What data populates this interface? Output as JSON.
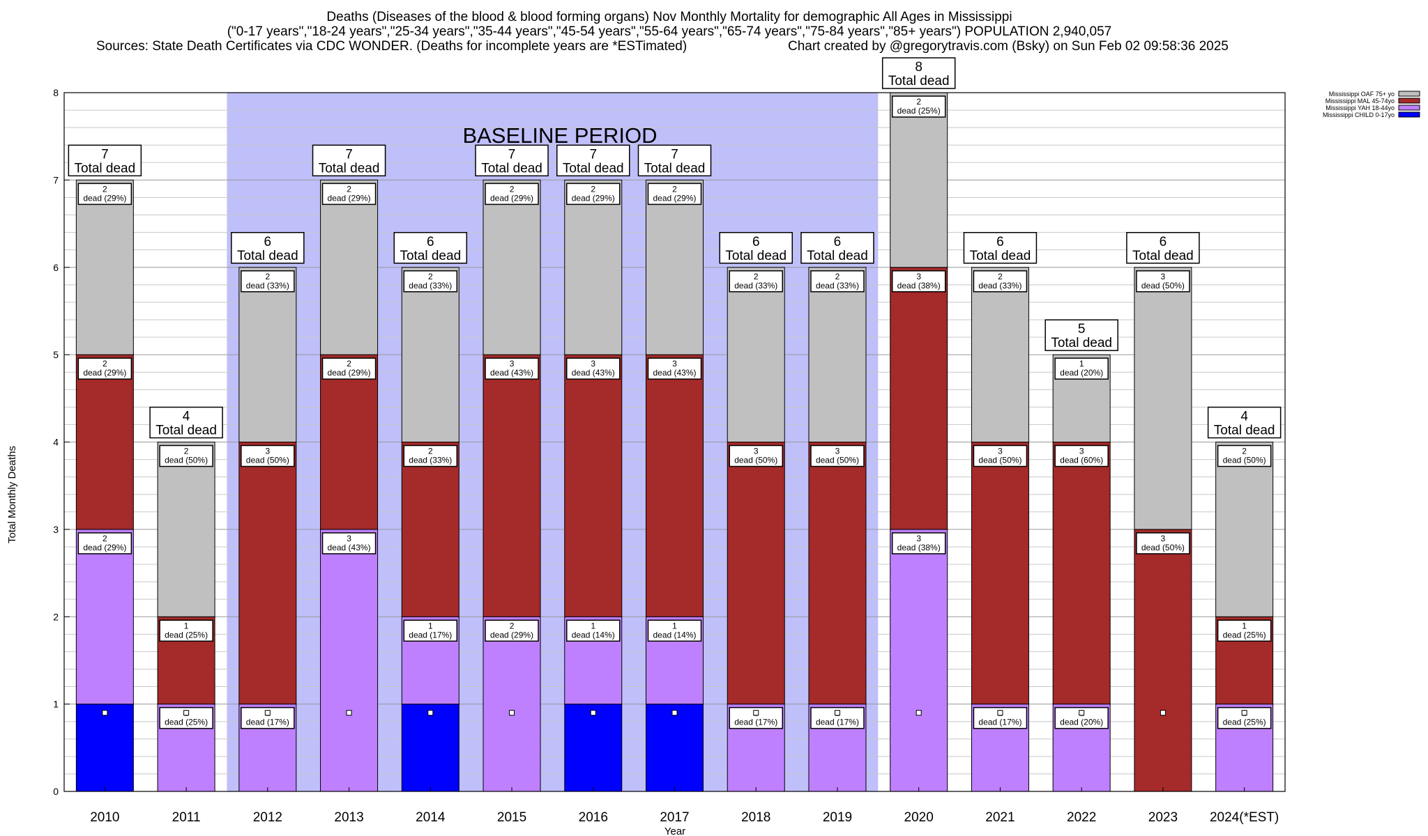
{
  "chart_data": {
    "type": "bar",
    "stacked": true,
    "title_lines": [
      "Deaths (Diseases of the blood & blood forming organs) Nov Monthly Mortality for demographic All Ages in Mississippi",
      "(\"0-17 years\",\"18-24 years\",\"25-34 years\",\"35-44 years\",\"45-54 years\",\"55-64 years\",\"65-74 years\",\"75-84 years\",\"85+ years\") POPULATION 2,940,057"
    ],
    "sources": "Sources: State Death Certificates via CDC WONDER. (Deaths for incomplete years are *ESTimated)",
    "credit": "Chart created by @gregorytravis.com (Bsky) on Sun Feb 02 09:58:36 2025",
    "xlabel": "Year",
    "ylabel": "Total Monthly Deaths",
    "ylim": [
      0,
      8
    ],
    "yticks": [
      "0",
      "1",
      "2",
      "3",
      "4",
      "5",
      "6",
      "7",
      "8"
    ],
    "baseline": {
      "label": "BASELINE PERIOD",
      "from": "2012",
      "to": "2019"
    },
    "total_label_suffix": "Total dead",
    "segment_label_word": "dead",
    "categories": [
      "2010",
      "2011",
      "2012",
      "2013",
      "2014",
      "2015",
      "2016",
      "2017",
      "2018",
      "2019",
      "2020",
      "2021",
      "2022",
      "2023",
      "2024(*EST)"
    ],
    "series": [
      {
        "name": "Mississippi CHILD 0-17yo",
        "color": "#0000ff",
        "values": [
          1,
          0,
          0,
          0,
          1,
          0,
          1,
          1,
          0,
          0,
          0,
          0,
          0,
          0,
          0
        ],
        "labels": [
          null,
          null,
          null,
          null,
          null,
          null,
          null,
          null,
          null,
          null,
          null,
          null,
          null,
          null,
          null
        ]
      },
      {
        "name": "Mississippi YAH 18-44yo",
        "color": "#bf80ff",
        "values": [
          2,
          1,
          1,
          3,
          1,
          2,
          1,
          1,
          1,
          1,
          3,
          1,
          1,
          0,
          1
        ],
        "labels": [
          "(29%)",
          "(25%)",
          "(17%)",
          "(43%)",
          "(17%)",
          "(29%)",
          "(14%)",
          "(14%)",
          "(17%)",
          "(17%)",
          "(38%)",
          "(17%)",
          "(20%)",
          null,
          "(25%)"
        ]
      },
      {
        "name": "Mississippi MAL 45-74yo",
        "color": "#a52a2a",
        "values": [
          2,
          1,
          3,
          2,
          2,
          3,
          3,
          3,
          3,
          3,
          3,
          3,
          3,
          3,
          1
        ],
        "labels": [
          "(29%)",
          "(25%)",
          "(50%)",
          "(29%)",
          "(33%)",
          "(43%)",
          "(43%)",
          "(43%)",
          "(50%)",
          "(50%)",
          "(38%)",
          "(50%)",
          "(60%)",
          "(50%)",
          "(25%)"
        ]
      },
      {
        "name": "Mississippi OAF 75+ yo",
        "color": "#c0c0c0",
        "values": [
          2,
          2,
          2,
          2,
          2,
          2,
          2,
          2,
          2,
          2,
          2,
          2,
          1,
          3,
          2
        ],
        "labels": [
          "(29%)",
          "(50%)",
          "(33%)",
          "(29%)",
          "(33%)",
          "(29%)",
          "(29%)",
          "(29%)",
          "(33%)",
          "(33%)",
          "(25%)",
          "(33%)",
          "(20%)",
          "(50%)",
          "(50%)"
        ]
      }
    ],
    "totals": [
      7,
      4,
      6,
      7,
      6,
      7,
      7,
      7,
      6,
      6,
      8,
      6,
      5,
      6,
      4
    ],
    "legend_position": "top-right",
    "grid": true
  }
}
